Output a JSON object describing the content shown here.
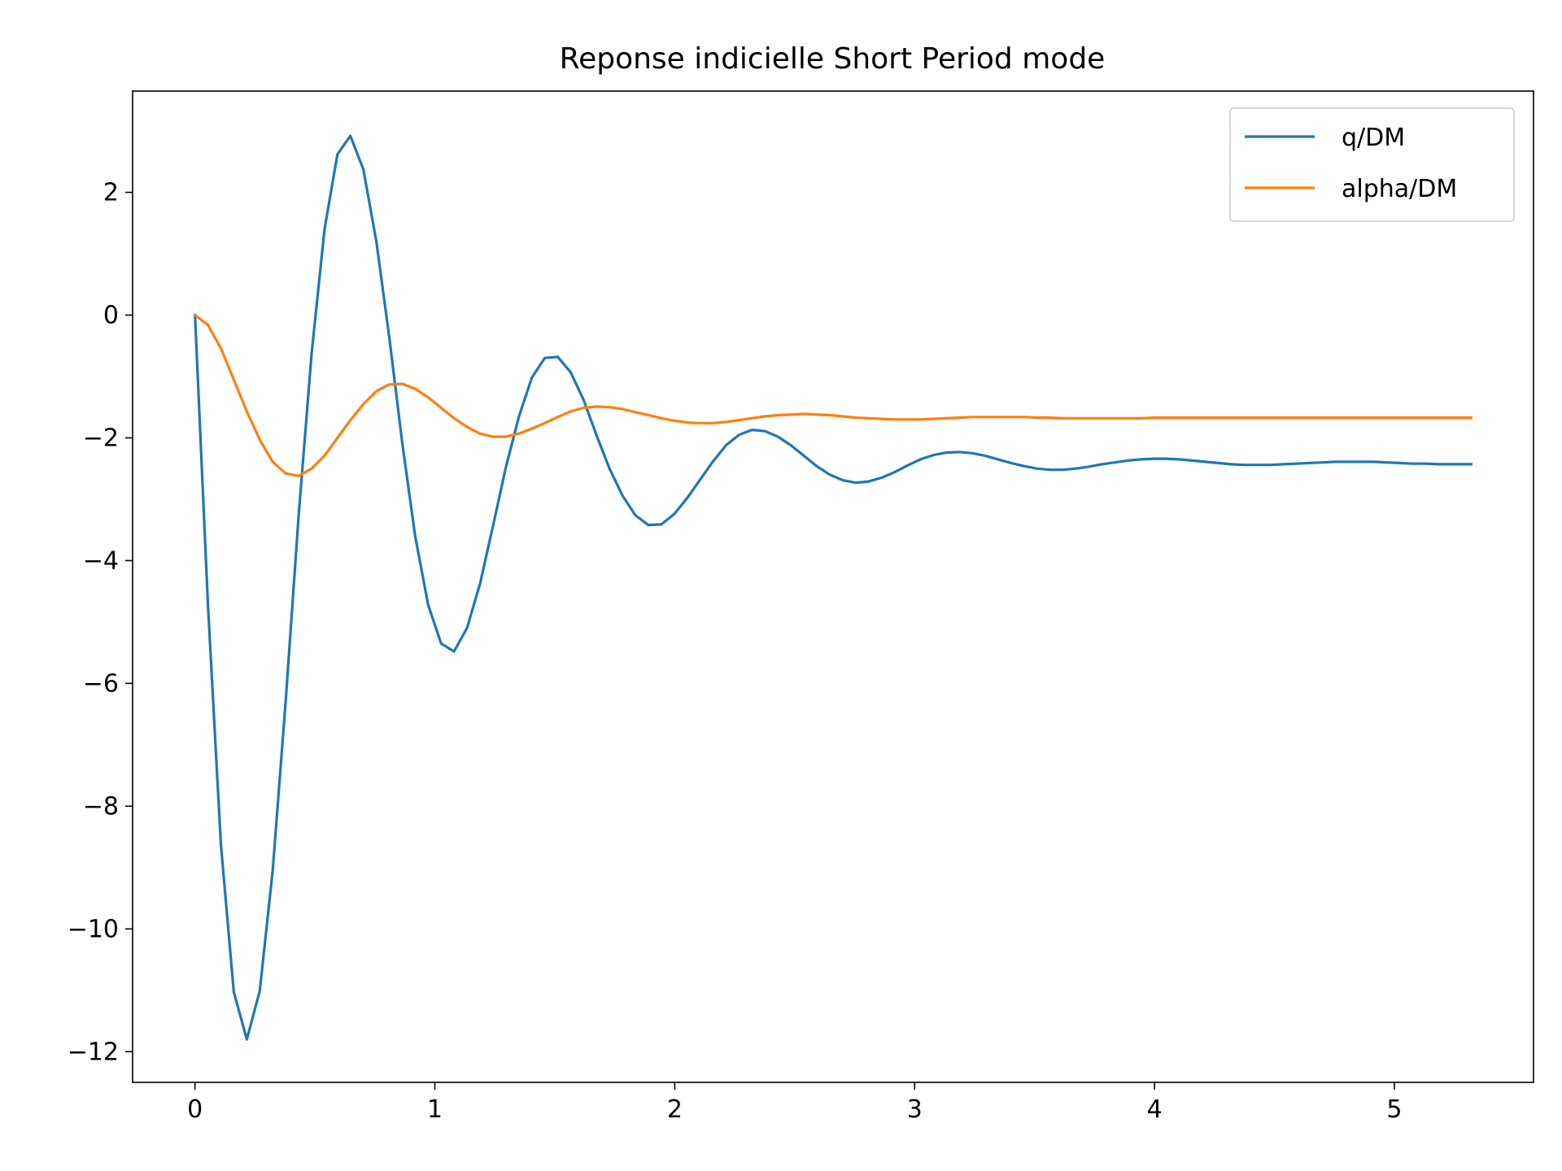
{
  "chart_data": {
    "type": "line",
    "title": "Reponse indicielle Short Period mode",
    "xlabel": "",
    "ylabel": "",
    "xlim": [
      -0.26,
      5.58
    ],
    "ylim": [
      -12.5,
      3.65
    ],
    "x_ticks": [
      0,
      1,
      2,
      3,
      4,
      5
    ],
    "x_tick_labels": [
      "0",
      "1",
      "2",
      "3",
      "4",
      "5"
    ],
    "y_ticks": [
      2,
      0,
      -2,
      -4,
      -6,
      -8,
      -10,
      -12
    ],
    "y_tick_labels": [
      "2",
      "0",
      "−2",
      "−4",
      "−6",
      "−8",
      "−10",
      "−12"
    ],
    "grid": false,
    "legend_position": "top-right",
    "series": [
      {
        "name": "q/DM",
        "color": "#1f77b4",
        "x": [
          0,
          0.054,
          0.108,
          0.162,
          0.216,
          0.27,
          0.324,
          0.378,
          0.432,
          0.486,
          0.54,
          0.594,
          0.648,
          0.702,
          0.756,
          0.81,
          0.864,
          0.918,
          0.972,
          1.026,
          1.08,
          1.134,
          1.188,
          1.242,
          1.296,
          1.35,
          1.404,
          1.458,
          1.512,
          1.566,
          1.62,
          1.674,
          1.728,
          1.782,
          1.836,
          1.89,
          1.944,
          1.998,
          2.052,
          2.106,
          2.16,
          2.214,
          2.268,
          2.322,
          2.376,
          2.43,
          2.484,
          2.538,
          2.592,
          2.646,
          2.7,
          2.754,
          2.808,
          2.862,
          2.916,
          2.97,
          3.024,
          3.078,
          3.132,
          3.186,
          3.24,
          3.294,
          3.348,
          3.402,
          3.456,
          3.51,
          3.564,
          3.618,
          3.672,
          3.726,
          3.78,
          3.834,
          3.888,
          3.942,
          3.996,
          4.05,
          4.104,
          4.158,
          4.212,
          4.266,
          4.32,
          4.374,
          4.428,
          4.482,
          4.536,
          4.59,
          4.644,
          4.698,
          4.752,
          4.806,
          4.86,
          4.914,
          4.968,
          5.022,
          5.076,
          5.13,
          5.184,
          5.238,
          5.292,
          5.32
        ],
        "values": [
          0,
          -4.72,
          -8.62,
          -11.03,
          -11.8,
          -11.01,
          -9.05,
          -6.3,
          -3.28,
          -0.63,
          1.4,
          2.62,
          2.92,
          2.37,
          1.2,
          -0.36,
          -2.08,
          -3.6,
          -4.72,
          -5.35,
          -5.48,
          -5.1,
          -4.38,
          -3.44,
          -2.48,
          -1.66,
          -1.02,
          -0.7,
          -0.68,
          -0.93,
          -1.38,
          -1.96,
          -2.5,
          -2.94,
          -3.26,
          -3.42,
          -3.41,
          -3.24,
          -2.98,
          -2.68,
          -2.38,
          -2.12,
          -1.95,
          -1.87,
          -1.89,
          -1.98,
          -2.12,
          -2.29,
          -2.46,
          -2.6,
          -2.69,
          -2.73,
          -2.71,
          -2.65,
          -2.56,
          -2.45,
          -2.35,
          -2.28,
          -2.24,
          -2.23,
          -2.25,
          -2.29,
          -2.35,
          -2.41,
          -2.46,
          -2.5,
          -2.52,
          -2.52,
          -2.5,
          -2.47,
          -2.43,
          -2.4,
          -2.37,
          -2.35,
          -2.34,
          -2.34,
          -2.35,
          -2.37,
          -2.39,
          -2.41,
          -2.43,
          -2.44,
          -2.44,
          -2.44,
          -2.43,
          -2.42,
          -2.41,
          -2.4,
          -2.39,
          -2.39,
          -2.39,
          -2.39,
          -2.4,
          -2.41,
          -2.42,
          -2.42,
          -2.43,
          -2.43,
          -2.43,
          -2.43
        ]
      },
      {
        "name": "alpha/DM",
        "color": "#ff7f0e",
        "x": [
          0,
          0.054,
          0.108,
          0.162,
          0.216,
          0.27,
          0.324,
          0.378,
          0.432,
          0.486,
          0.54,
          0.594,
          0.648,
          0.702,
          0.756,
          0.81,
          0.864,
          0.918,
          0.972,
          1.026,
          1.08,
          1.134,
          1.188,
          1.242,
          1.296,
          1.35,
          1.404,
          1.458,
          1.512,
          1.566,
          1.62,
          1.674,
          1.728,
          1.782,
          1.836,
          1.89,
          1.944,
          1.998,
          2.052,
          2.106,
          2.16,
          2.214,
          2.268,
          2.322,
          2.376,
          2.43,
          2.484,
          2.538,
          2.592,
          2.646,
          2.7,
          2.754,
          2.808,
          2.862,
          2.916,
          2.97,
          3.024,
          3.078,
          3.132,
          3.186,
          3.24,
          3.294,
          3.348,
          3.402,
          3.456,
          3.51,
          3.564,
          3.618,
          3.672,
          3.726,
          3.78,
          3.834,
          3.888,
          3.942,
          3.996,
          4.05,
          4.104,
          4.158,
          4.212,
          4.266,
          4.32,
          4.374,
          4.428,
          4.482,
          4.536,
          4.59,
          4.644,
          4.698,
          4.752,
          4.806,
          4.86,
          4.914,
          4.968,
          5.022,
          5.076,
          5.13,
          5.184,
          5.238,
          5.292,
          5.32
        ],
        "values": [
          0,
          -0.16,
          -0.54,
          -1.05,
          -1.57,
          -2.03,
          -2.39,
          -2.58,
          -2.62,
          -2.5,
          -2.29,
          -2.0,
          -1.71,
          -1.45,
          -1.24,
          -1.13,
          -1.12,
          -1.2,
          -1.34,
          -1.51,
          -1.68,
          -1.82,
          -1.93,
          -1.98,
          -1.98,
          -1.93,
          -1.85,
          -1.76,
          -1.66,
          -1.57,
          -1.51,
          -1.49,
          -1.5,
          -1.53,
          -1.58,
          -1.63,
          -1.68,
          -1.72,
          -1.75,
          -1.76,
          -1.76,
          -1.74,
          -1.71,
          -1.68,
          -1.65,
          -1.63,
          -1.62,
          -1.61,
          -1.62,
          -1.63,
          -1.65,
          -1.67,
          -1.68,
          -1.69,
          -1.7,
          -1.7,
          -1.7,
          -1.69,
          -1.68,
          -1.67,
          -1.66,
          -1.66,
          -1.66,
          -1.66,
          -1.66,
          -1.67,
          -1.67,
          -1.68,
          -1.68,
          -1.68,
          -1.68,
          -1.68,
          -1.68,
          -1.68,
          -1.67,
          -1.67,
          -1.67,
          -1.67,
          -1.67,
          -1.67,
          -1.67,
          -1.67,
          -1.67,
          -1.67,
          -1.67,
          -1.67,
          -1.67,
          -1.67,
          -1.67,
          -1.67,
          -1.67,
          -1.67,
          -1.67,
          -1.67,
          -1.67,
          -1.67,
          -1.67,
          -1.67,
          -1.67,
          -1.67
        ]
      }
    ]
  }
}
